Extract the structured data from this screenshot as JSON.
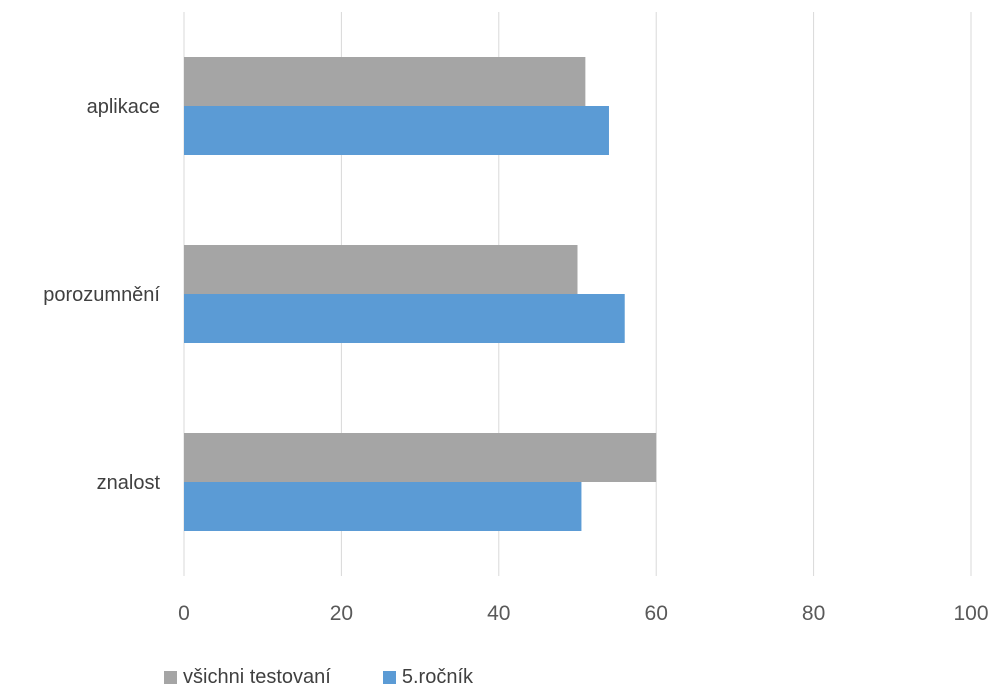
{
  "chart_data": {
    "type": "bar",
    "orientation": "horizontal",
    "categories": [
      "znalost",
      "porozumnění",
      "aplikace"
    ],
    "series": [
      {
        "name": "všichni testovaní",
        "values": [
          60,
          50,
          51
        ],
        "color": "#A5A5A5"
      },
      {
        "name": "5.ročník",
        "values": [
          50.5,
          56,
          54
        ],
        "color": "#5B9BD5"
      }
    ],
    "xlim": [
      0,
      100
    ],
    "xticks": [
      "0",
      "20",
      "40",
      "60",
      "80",
      "100"
    ],
    "grid": true,
    "legend_position": "bottom-left",
    "title": "",
    "xlabel": "",
    "ylabel": ""
  },
  "legend": {
    "items": [
      {
        "label": "všichni testovaní",
        "color": "#A5A5A5"
      },
      {
        "label": "5.ročník",
        "color": "#5B9BD5"
      }
    ]
  },
  "colors": {
    "gridline": "#D9D9D9",
    "background": "#FFFFFF"
  }
}
